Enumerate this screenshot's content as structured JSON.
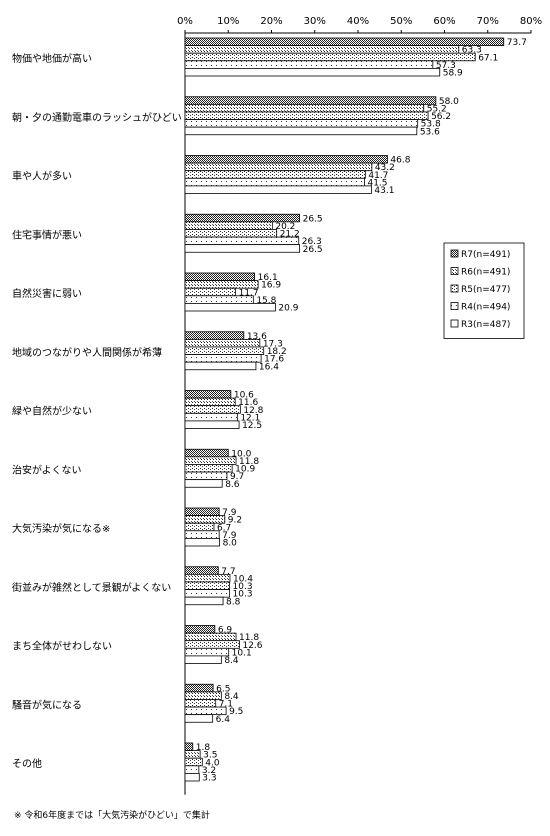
{
  "chart_data": {
    "type": "bar",
    "orientation": "horizontal",
    "xlim": [
      0,
      80
    ],
    "x_ticks": [
      "0%",
      "10%",
      "20%",
      "30%",
      "40%",
      "50%",
      "60%",
      "70%",
      "80%"
    ],
    "legend_position": "right",
    "grid": false,
    "categories": [
      "物価や地価が高い",
      "朝・夕の通勤電車のラッシュがひどい",
      "車や人が多い",
      "住宅事情が悪い",
      "自然災害に弱い",
      "地域のつながりや人間関係が希薄",
      "緑や自然が少ない",
      "治安がよくない",
      "大気汚染が気になる※",
      "街並みが雑然として景観がよくない",
      "まち全体がせわしない",
      "騒音が気になる",
      "その他"
    ],
    "series": [
      {
        "name": "R7(n=491)",
        "values": [
          73.7,
          58.0,
          46.8,
          26.5,
          16.1,
          13.6,
          10.6,
          10.0,
          7.9,
          7.7,
          6.9,
          6.5,
          1.8
        ]
      },
      {
        "name": "R6(n=491)",
        "values": [
          63.3,
          55.2,
          43.2,
          20.2,
          16.9,
          17.3,
          11.6,
          11.8,
          9.2,
          10.4,
          11.8,
          8.4,
          3.5
        ]
      },
      {
        "name": "R5(n=477)",
        "values": [
          67.1,
          56.2,
          41.7,
          21.2,
          11.7,
          18.2,
          12.8,
          10.9,
          6.7,
          10.3,
          12.6,
          7.1,
          4.0
        ]
      },
      {
        "name": "R4(n=494)",
        "values": [
          57.3,
          53.8,
          41.5,
          26.3,
          15.8,
          17.6,
          12.1,
          9.7,
          7.9,
          10.3,
          10.1,
          9.5,
          3.2
        ]
      },
      {
        "name": "R3(n=487)",
        "values": [
          58.9,
          53.6,
          43.1,
          26.5,
          20.9,
          16.4,
          12.5,
          8.6,
          8.0,
          8.8,
          8.4,
          6.4,
          3.3
        ]
      }
    ]
  },
  "footnote": "※ 令和6年度までは「大気汚染がひどい」で集計"
}
